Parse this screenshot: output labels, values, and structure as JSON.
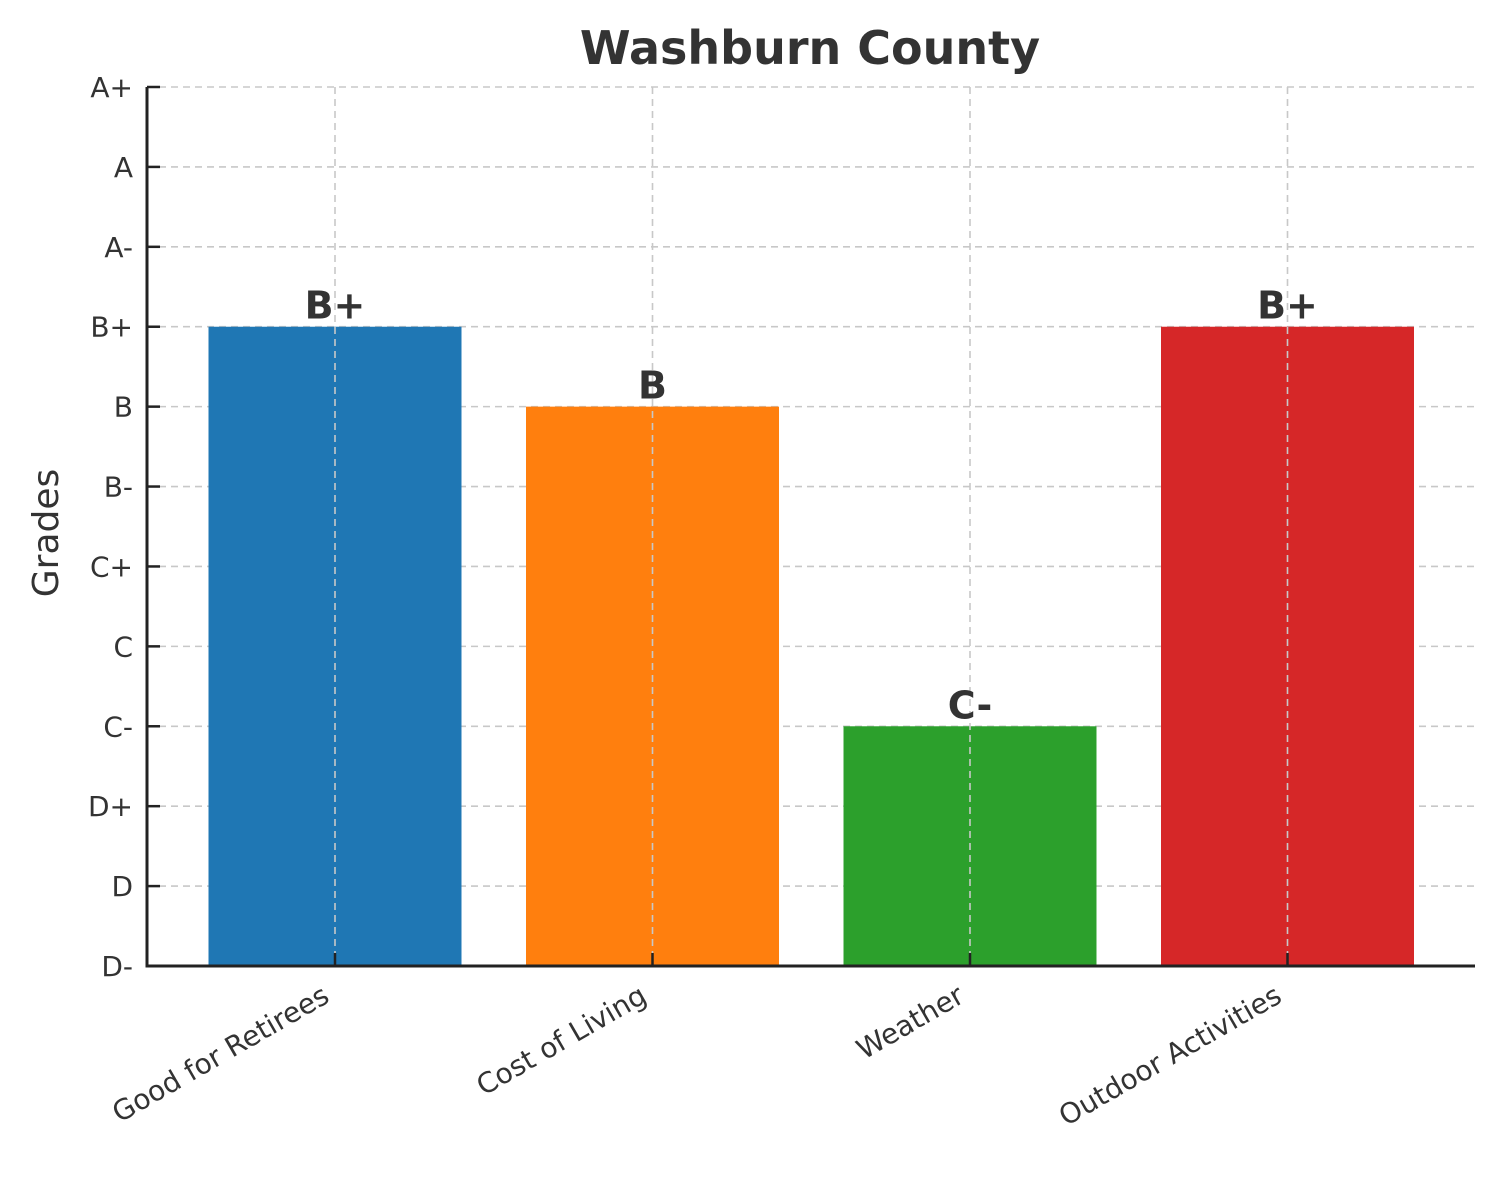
{
  "chart_data": {
    "type": "bar",
    "title": "Washburn County",
    "xlabel": "",
    "ylabel": "Grades",
    "grade_scale": [
      "D-",
      "D",
      "D+",
      "C-",
      "C",
      "C+",
      "B-",
      "B",
      "B+",
      "A-",
      "A",
      "A+"
    ],
    "categories": [
      "Good for Retirees",
      "Cost of Living",
      "Weather",
      "Outdoor Activities"
    ],
    "values": [
      8,
      7,
      3,
      8
    ],
    "value_labels": [
      "B+",
      "B",
      "C-",
      "B+"
    ],
    "ylim": [
      0,
      11
    ],
    "grid": true,
    "colors": [
      "#1f77b4",
      "#ff7f0e",
      "#2ca02c",
      "#d62728"
    ]
  }
}
